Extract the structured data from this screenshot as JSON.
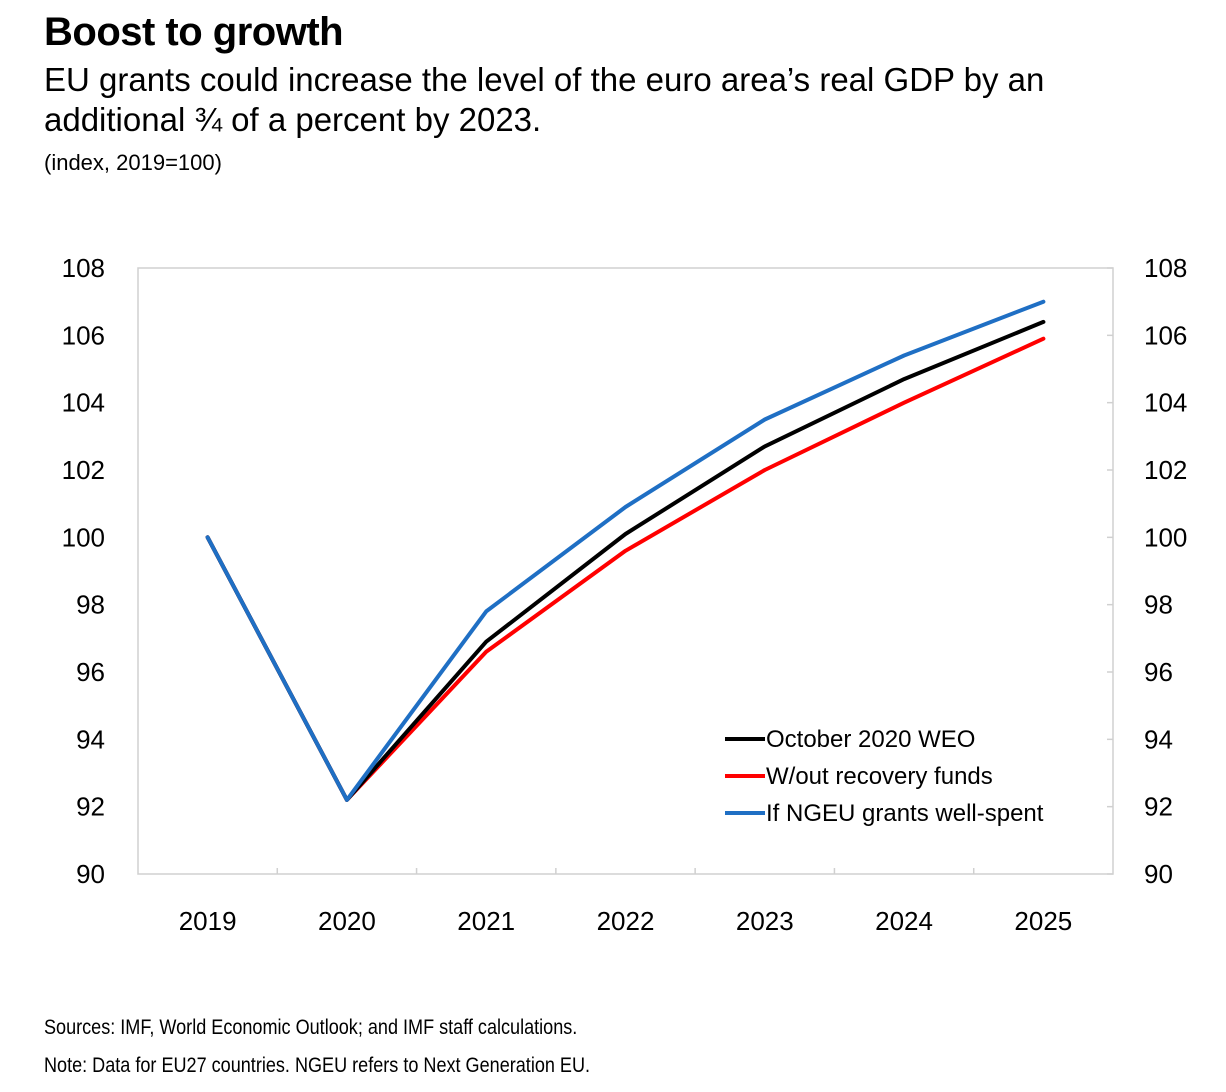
{
  "title": "Boost to growth",
  "subtitle": "EU grants could increase the level of the euro area’s real GDP by an additional ¾ of a percent by 2023.",
  "unit": "(index, 2019=100)",
  "sources": "Sources: IMF, World Economic Outlook; and IMF staff calculations.",
  "note": "Note: Data for EU27 countries. NGEU refers to Next Generation EU.",
  "chart_data": {
    "type": "line",
    "x": [
      "2019",
      "2020",
      "2021",
      "2022",
      "2023",
      "2024",
      "2025"
    ],
    "ylim": [
      90,
      108
    ],
    "yticks": [
      "90",
      "92",
      "94",
      "96",
      "98",
      "100",
      "102",
      "104",
      "106",
      "108"
    ],
    "secondary_axis": true,
    "grid": false,
    "legend_position": "bottom-right",
    "series": [
      {
        "name": "October 2020 WEO",
        "color": "#000000",
        "values": [
          100,
          92.2,
          96.9,
          100.1,
          102.7,
          104.7,
          106.4
        ]
      },
      {
        "name": "W/out recovery funds",
        "color": "#ff0000",
        "values": [
          100,
          92.2,
          96.6,
          99.6,
          102.0,
          104.0,
          105.9
        ]
      },
      {
        "name": "If NGEU grants well-spent",
        "color": "#1f6fc4",
        "values": [
          100,
          92.2,
          97.8,
          100.9,
          103.5,
          105.4,
          107.0
        ]
      }
    ]
  }
}
